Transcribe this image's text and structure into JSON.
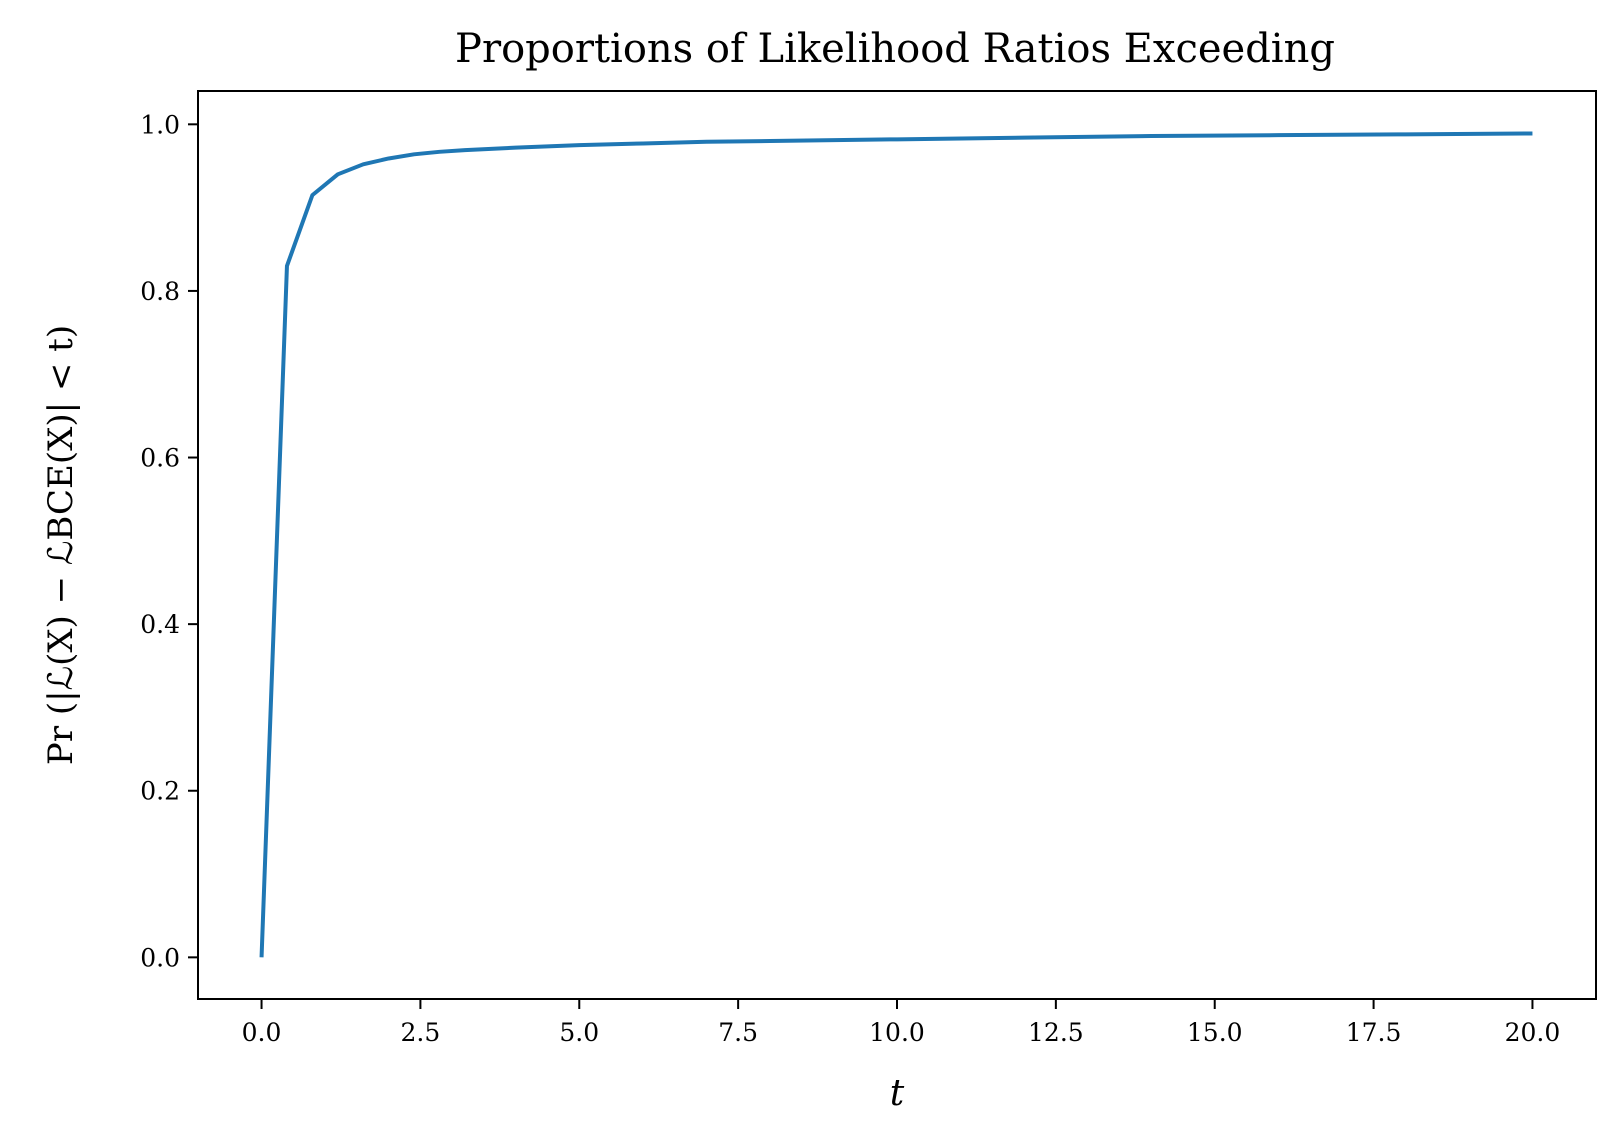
{
  "chart_data": {
    "type": "line",
    "title": "Proportions of Likelihood Ratios Exceeding",
    "xlabel": "t",
    "ylabel": "Pr (|ℒ(X) − ℒBCE(X)| < t)",
    "xlim": [
      -1.0,
      21.0
    ],
    "ylim": [
      -0.05,
      1.04
    ],
    "grid": false,
    "legend": "none",
    "line_color": "#1f77b4",
    "x_ticks": [
      0.0,
      2.5,
      5.0,
      7.5,
      10.0,
      12.5,
      15.0,
      17.5,
      20.0
    ],
    "x_tick_labels": [
      "0.0",
      "2.5",
      "5.0",
      "7.5",
      "10.0",
      "12.5",
      "15.0",
      "17.5",
      "20.0"
    ],
    "y_ticks": [
      0.0,
      0.2,
      0.4,
      0.6,
      0.8,
      1.0
    ],
    "y_tick_labels": [
      "0.0",
      "0.2",
      "0.4",
      "0.6",
      "0.8",
      "1.0"
    ],
    "series": [
      {
        "x": [
          0.0,
          0.4,
          0.8,
          1.2,
          1.6,
          2.0,
          2.4,
          2.8,
          3.2,
          4.0,
          5.0,
          6.0,
          7.0,
          8.0,
          10.0,
          12.0,
          14.0,
          16.0,
          18.0,
          20.0
        ],
        "y": [
          0.0,
          0.83,
          0.915,
          0.94,
          0.952,
          0.959,
          0.964,
          0.967,
          0.969,
          0.972,
          0.975,
          0.977,
          0.979,
          0.98,
          0.982,
          0.984,
          0.986,
          0.987,
          0.988,
          0.989
        ]
      }
    ]
  }
}
